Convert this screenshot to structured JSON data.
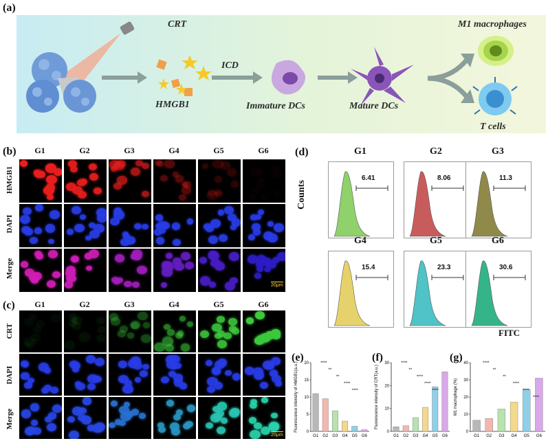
{
  "panel_a": {
    "letter": "(a)",
    "labels": {
      "crt": "CRT",
      "hmgb1": "HMGB1",
      "icd": "ICD",
      "immature": "Immature DCs",
      "mature": "Mature DCs",
      "m1": "M1 macrophages",
      "tcells": "T cells"
    }
  },
  "panel_b": {
    "letter": "(b)",
    "groups": [
      "G1",
      "G2",
      "G3",
      "G4",
      "G5",
      "G6"
    ],
    "rows": [
      "HMGB1",
      "DAPI",
      "Merge"
    ],
    "scale": "20μm"
  },
  "panel_c": {
    "letter": "(c)",
    "groups": [
      "G1",
      "G2",
      "G3",
      "G4",
      "G5",
      "G6"
    ],
    "rows": [
      "CRT",
      "DAPI",
      "Merge"
    ],
    "scale": "20μm"
  },
  "panel_d": {
    "letter": "(d)",
    "ylabel": "Counts",
    "xlabel": "FITC",
    "groups": [
      "G1",
      "G2",
      "G3",
      "G4",
      "G5",
      "G6"
    ],
    "values": [
      "6.41",
      "8.06",
      "11.3",
      "15.4",
      "23.3",
      "30.6"
    ],
    "colors": [
      "#8fd16a",
      "#c85c5c",
      "#8f8a4a",
      "#e6d26a",
      "#4fc3c7",
      "#36b489"
    ]
  },
  "panel_e": {
    "letter": "(e)",
    "ylabel": "Fluorescence intensity of HMGB1(a.u.)",
    "sig": [
      "****",
      "**",
      "**",
      "****",
      "****"
    ]
  },
  "panel_f": {
    "letter": "(f)",
    "ylabel": "Fluorescence intensity of CRT(a.u.)",
    "sig": [
      "****",
      "**",
      "****",
      "****",
      "****"
    ]
  },
  "panel_g": {
    "letter": "(g)",
    "ylabel": "M1 macrophage (%)",
    "sig": [
      "****",
      "**",
      "**",
      "****",
      "****",
      "****"
    ]
  },
  "chart_data": [
    {
      "type": "bar",
      "categories": [
        "G1",
        "G2",
        "G3",
        "G4",
        "G5",
        "G6"
      ],
      "values": [
        11,
        9.5,
        6,
        3,
        1.5,
        0.5
      ],
      "ylabel": "Fluorescence intensity of HMGB1(a.u.)",
      "ylim": [
        0,
        20
      ],
      "yticks": [
        0,
        5,
        10,
        15,
        20
      ],
      "colors": [
        "#b8b8b8",
        "#f2b8b0",
        "#b8e2b0",
        "#f3d98e",
        "#8fd0e8",
        "#d8a8e8"
      ]
    },
    {
      "type": "bar",
      "categories": [
        "G1",
        "G2",
        "G3",
        "G4",
        "G5",
        "G6"
      ],
      "values": [
        2,
        2.5,
        6,
        10.5,
        19.5,
        26
      ],
      "ylabel": "Fluorescence intensity of CRT(a.u.)",
      "ylim": [
        0,
        30
      ],
      "yticks": [
        0,
        10,
        20,
        30
      ],
      "colors": [
        "#b8b8b8",
        "#f2b8b0",
        "#b8e2b0",
        "#f3d98e",
        "#8fd0e8",
        "#d8a8e8"
      ]
    },
    {
      "type": "bar",
      "categories": [
        "G1",
        "G2",
        "G3",
        "G4",
        "G5",
        "G6"
      ],
      "values": [
        6.5,
        7.5,
        13,
        17,
        24.5,
        31
      ],
      "ylabel": "M1 macrophage (%)",
      "ylim": [
        0,
        40
      ],
      "yticks": [
        0,
        10,
        20,
        30,
        40
      ],
      "colors": [
        "#b8b8b8",
        "#f2b8b0",
        "#b8e2b0",
        "#f3d98e",
        "#8fd0e8",
        "#d8a8e8"
      ]
    }
  ]
}
